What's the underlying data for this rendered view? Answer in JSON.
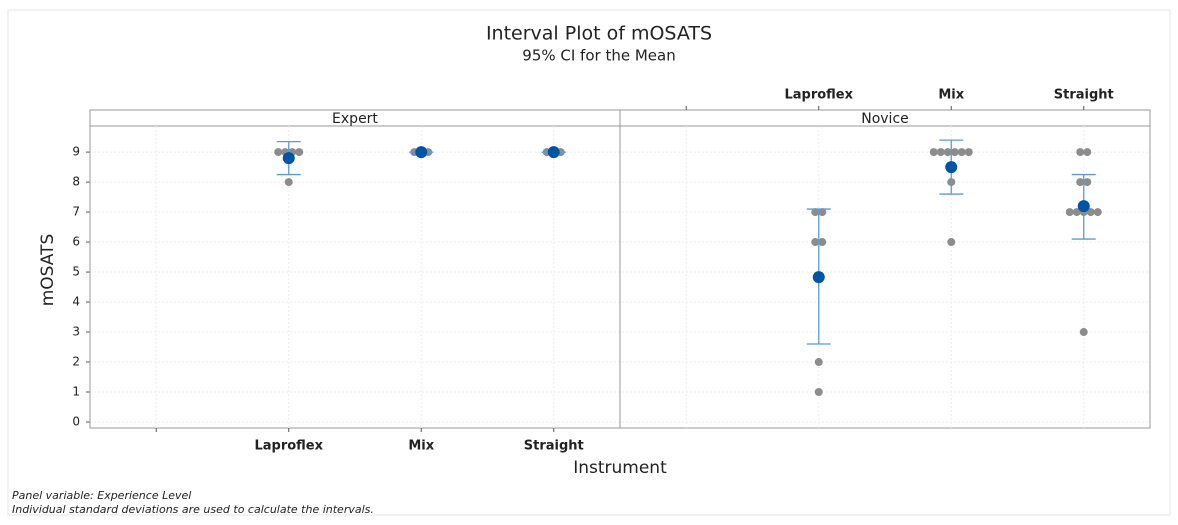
{
  "chart_data": {
    "type": "interval",
    "title": "Interval Plot of mOSATS",
    "subtitle": "95% CI for the Mean",
    "x_label": "Instrument",
    "y_label": "mOSATS",
    "footnotes": [
      "Panel variable: Experience Level",
      "Individual standard deviations are used to calculate the intervals."
    ],
    "categories": [
      null,
      "Laproflex",
      "Mix",
      "Straight"
    ],
    "ylim": [
      -0.2,
      9.87
    ],
    "yticks": [
      0,
      1,
      2,
      3,
      4,
      5,
      6,
      7,
      8,
      9
    ],
    "grid": true,
    "point_color": "#8c8c8c",
    "mean_color": "#0054a6",
    "ci_color": "#5b9bd5",
    "panels": [
      {
        "name": "Expert",
        "groups": [
          null,
          {
            "points": [
              9,
              9,
              9,
              9,
              8
            ],
            "mean": 8.8,
            "ci_lower": 8.25,
            "ci_upper": 9.35
          },
          {
            "points": [
              9,
              9,
              9
            ],
            "mean": 9,
            "ci_lower": 9,
            "ci_upper": 9
          },
          {
            "points": [
              9,
              9,
              9
            ],
            "mean": 9,
            "ci_lower": 9,
            "ci_upper": 9
          }
        ]
      },
      {
        "name": "Novice",
        "groups": [
          null,
          {
            "points": [
              7,
              7,
              6,
              6,
              2,
              1
            ],
            "mean": 4.83,
            "ci_lower": 2.6,
            "ci_upper": 7.1
          },
          {
            "points": [
              9,
              9,
              9,
              9,
              9,
              9,
              8,
              6
            ],
            "mean": 8.5,
            "ci_lower": 7.6,
            "ci_upper": 9.4
          },
          {
            "points": [
              9,
              9,
              8,
              8,
              7,
              7,
              7,
              7,
              7,
              3
            ],
            "mean": 7.2,
            "ci_lower": 6.1,
            "ci_upper": 8.25
          }
        ]
      }
    ]
  }
}
